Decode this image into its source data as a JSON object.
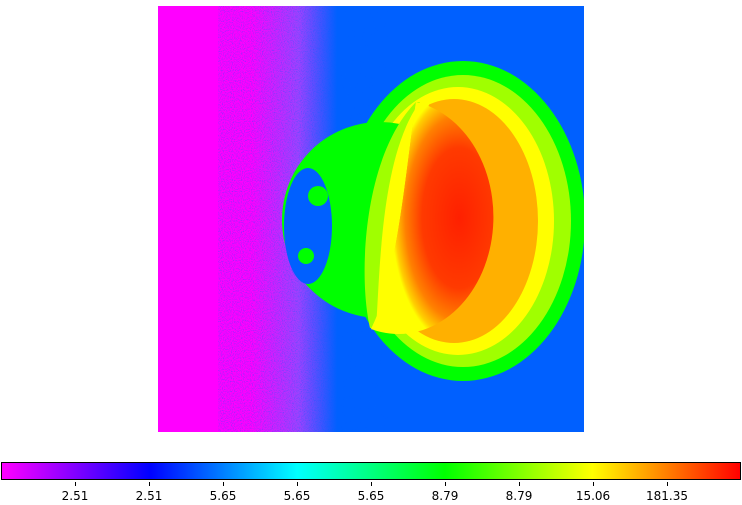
{
  "image": {
    "description_colors": {
      "background_low": "#ff00ff",
      "background_mid": "#0060ff",
      "halo": "#00ff00",
      "rim": "#ffff00",
      "core": "#ff2000"
    }
  },
  "colorbar": {
    "colormap": [
      "#ff00ff",
      "#8000ff",
      "#0000ff",
      "#0080ff",
      "#00ffff",
      "#00ff80",
      "#00ff00",
      "#80ff00",
      "#ffff00",
      "#ff8000",
      "#ff0000"
    ],
    "tick_labels": [
      "2.51",
      "2.51",
      "5.65",
      "5.65",
      "5.65",
      "8.79",
      "8.79",
      "15.06",
      "181.35"
    ]
  }
}
